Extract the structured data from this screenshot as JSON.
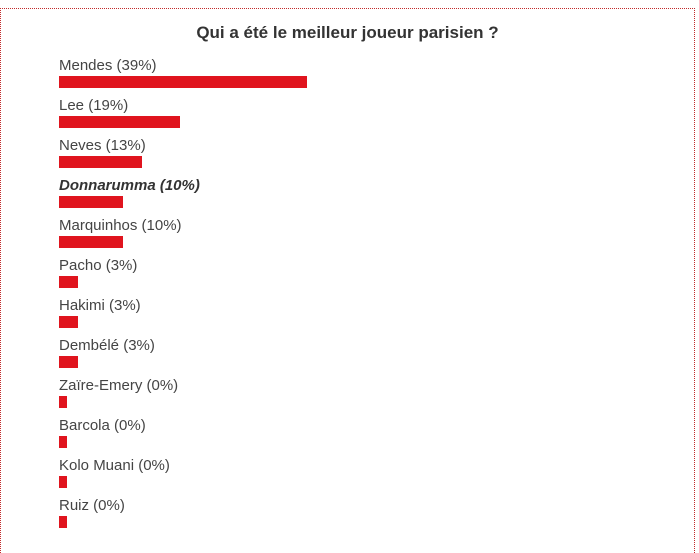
{
  "poll": {
    "title": "Qui a été le meilleur joueur parisien ?"
  },
  "chart_data": {
    "type": "bar",
    "orientation": "horizontal",
    "title": "Qui a été le meilleur joueur parisien ?",
    "bar_color": "#e0141e",
    "categories": [
      "Mendes",
      "Lee",
      "Neves",
      "Donnarumma",
      "Marquinhos",
      "Pacho",
      "Hakimi",
      "Dembélé",
      "Zaïre-Emery",
      "Barcola",
      "Kolo Muani",
      "Ruiz"
    ],
    "values": [
      39,
      19,
      13,
      10,
      10,
      3,
      3,
      3,
      0,
      0,
      0,
      0
    ],
    "labels": [
      "Mendes (39%)",
      "Lee (19%)",
      "Neves (13%)",
      "Donnarumma (10%)",
      "Marquinhos (10%)",
      "Pacho (3%)",
      "Hakimi (3%)",
      "Dembélé (3%)",
      "Zaïre-Emery (0%)",
      "Barcola (0%)",
      "Kolo Muani (0%)",
      "Ruiz (0%)"
    ],
    "highlighted": "Donnarumma",
    "unit": "%"
  }
}
